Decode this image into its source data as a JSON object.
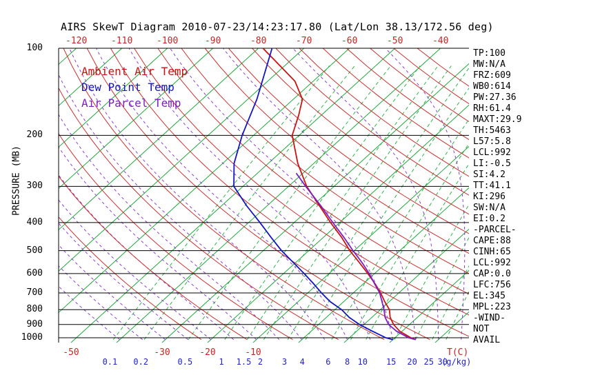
{
  "colors": {
    "axis_red": "#cc2222",
    "axis_blue": "#2222cc",
    "isotherm_green": "#1fa83c",
    "mixing_green": "#2fb34c",
    "moist_violet": "#8a3fd0",
    "dry_adiabat_red": "#cc3030",
    "grid_black": "#000000",
    "ambient_red": "#cc1111",
    "dewpoint_blue": "#1414c0",
    "parcel_purple": "#7b1fc0"
  },
  "legend": [
    {
      "label": "Ambient Air Temp",
      "color": "#cc1111"
    },
    {
      "label": "Dew Point Temp",
      "color": "#1414c0"
    },
    {
      "label": "Air Parcel Temp",
      "color": "#7b1fc0"
    }
  ],
  "stats_panel": {
    "lines": [
      "TP:100",
      "MW:N/A",
      "FRZ:609",
      "WB0:614",
      "PW:27.36",
      "RH:61.4",
      "MAXT:29.9",
      "TH:5463",
      "L57:5.8",
      "LCL:992",
      "LI:-0.5",
      "SI:4.2",
      "TT:41.1",
      "KI:296",
      "SW:N/A",
      "EI:0.2",
      "-PARCEL-",
      "CAPE:88",
      "CINH:65",
      "LCL:992",
      "CAP:0.0",
      "LFC:756",
      "EL:345",
      "MPL:223",
      "-WIND-",
      "NOT",
      "AVAIL"
    ]
  },
  "chart_data": {
    "type": "line",
    "subtype": "skew-t-log-p",
    "title": "AIRS SkewT Diagram 2010-07-23/14:23:17.80 (Lat/Lon 38.13/172.56 deg)",
    "x_axis_top": {
      "unit": "deg C",
      "labels": [
        -120,
        -110,
        -100,
        -90,
        -80,
        -70,
        -60,
        -50,
        -40
      ]
    },
    "x_axis_bottom_temp": {
      "unit": "T(C)",
      "labels": [
        -50,
        -30,
        -20,
        -10
      ]
    },
    "x_axis_bottom_mixing_ratio": {
      "unit": "(g/kg)",
      "labels": [
        0.1,
        0.2,
        0.5,
        1,
        1.5,
        2,
        3,
        4,
        6,
        8,
        10,
        15,
        20,
        25,
        30
      ]
    },
    "y_axis": {
      "label": "PRESSURE (MB)",
      "scale": "log",
      "ticks": [
        100,
        200,
        300,
        400,
        500,
        600,
        700,
        800,
        900,
        1000
      ],
      "range": [
        100,
        1015
      ]
    },
    "series": [
      {
        "name": "Ambient Air Temp",
        "color": "#cc1111",
        "points": [
          [
            1015,
            25
          ],
          [
            1000,
            23.5
          ],
          [
            950,
            19.5
          ],
          [
            900,
            16.5
          ],
          [
            850,
            14
          ],
          [
            800,
            12
          ],
          [
            750,
            9
          ],
          [
            700,
            6
          ],
          [
            650,
            2.5
          ],
          [
            600,
            -1.5
          ],
          [
            550,
            -6
          ],
          [
            500,
            -11
          ],
          [
            450,
            -16
          ],
          [
            400,
            -22
          ],
          [
            350,
            -28.5
          ],
          [
            300,
            -36
          ],
          [
            250,
            -43.5
          ],
          [
            200,
            -51.5
          ],
          [
            170,
            -55
          ],
          [
            150,
            -58
          ],
          [
            130,
            -64
          ],
          [
            115,
            -71
          ],
          [
            100,
            -79
          ]
        ]
      },
      {
        "name": "Dew Point Temp",
        "color": "#1414c0",
        "points": [
          [
            1015,
            20
          ],
          [
            1000,
            18
          ],
          [
            950,
            13.5
          ],
          [
            900,
            9
          ],
          [
            850,
            5
          ],
          [
            800,
            1.5
          ],
          [
            750,
            -3
          ],
          [
            700,
            -7
          ],
          [
            650,
            -11
          ],
          [
            600,
            -15.5
          ],
          [
            550,
            -20.5
          ],
          [
            500,
            -26
          ],
          [
            450,
            -31.5
          ],
          [
            400,
            -37.5
          ],
          [
            350,
            -44.5
          ],
          [
            300,
            -52
          ],
          [
            250,
            -57.5
          ],
          [
            200,
            -62.5
          ],
          [
            150,
            -68
          ],
          [
            100,
            -77
          ]
        ]
      },
      {
        "name": "Air Parcel Temp",
        "color": "#7b1fc0",
        "points": [
          [
            1015,
            25
          ],
          [
            1000,
            23
          ],
          [
            950,
            18.8
          ],
          [
            900,
            15.4
          ],
          [
            850,
            12.9
          ],
          [
            800,
            10.8
          ],
          [
            750,
            8.4
          ],
          [
            700,
            5.8
          ],
          [
            650,
            2.4
          ],
          [
            600,
            -1.2
          ],
          [
            550,
            -5.4
          ],
          [
            500,
            -10.3
          ],
          [
            450,
            -15.5
          ],
          [
            400,
            -21.5
          ],
          [
            350,
            -28.2
          ],
          [
            300,
            -36.2
          ],
          [
            270,
            -41.5
          ]
        ]
      }
    ],
    "background": {
      "isotherm_range": [
        -180,
        40
      ],
      "isotherm_step": 10,
      "dry_adiabat_theta_K": [
        250,
        260,
        270,
        280,
        290,
        300,
        310,
        320,
        330,
        340,
        350,
        360,
        370,
        380,
        390,
        400,
        410,
        420,
        430,
        440
      ],
      "moist_adiabat_start_C": [
        -40,
        -35,
        -30,
        -25,
        -20,
        -15,
        -10,
        -5,
        0,
        5,
        10,
        15,
        20,
        25,
        30,
        35,
        40
      ],
      "mixing_ratio_lines": [
        0.1,
        0.2,
        0.5,
        1,
        1.5,
        2,
        3,
        4,
        6,
        8,
        10,
        15,
        20,
        25,
        30
      ]
    }
  }
}
